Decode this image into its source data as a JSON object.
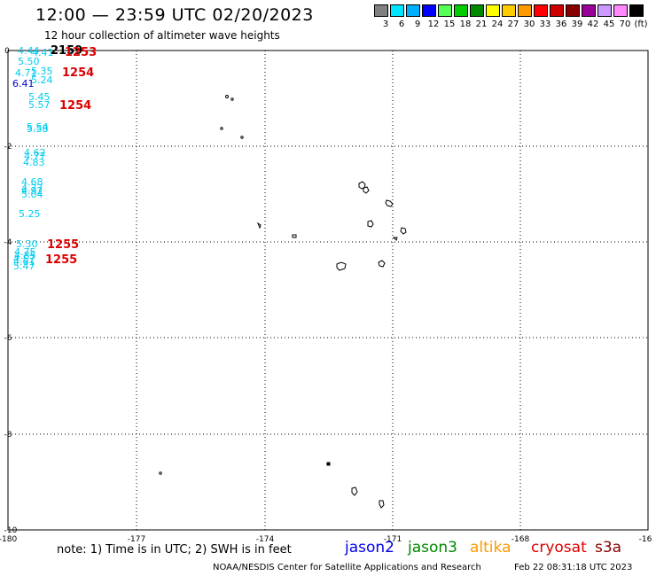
{
  "title": "12:00 — 23:59 UTC 02/20/2023",
  "subtitle": "12 hour collection of altimeter wave heights",
  "scale": {
    "labels": [
      "3",
      "6",
      "9",
      "12",
      "15",
      "18",
      "21",
      "24",
      "27",
      "30",
      "33",
      "36",
      "39",
      "42",
      "45",
      "70",
      "(ft)"
    ],
    "colors": [
      "#808080",
      "#00e5ff",
      "#00b0ff",
      "#0000ff",
      "#55ff55",
      "#00cc00",
      "#008800",
      "#ffff00",
      "#ffcc00",
      "#ff9900",
      "#ff0000",
      "#cc0000",
      "#880000",
      "#990099",
      "#cc99ff",
      "#ff88ff",
      "#000000"
    ]
  },
  "map": {
    "lon_labels": [
      "-180",
      "-177",
      "-174",
      "-171",
      "-168",
      "-16"
    ],
    "lat_labels": [
      "0",
      "-2",
      "-4",
      "-6",
      "-8",
      "-10"
    ]
  },
  "time_labels": [
    {
      "text": "2159",
      "color": "#000000"
    },
    {
      "text": "1253",
      "color": "#dd0000"
    },
    {
      "text": "1254",
      "color": "#dd0000"
    },
    {
      "text": "1254",
      "color": "#dd0000"
    },
    {
      "text": "1255",
      "color": "#dd0000"
    },
    {
      "text": "1255",
      "color": "#dd0000"
    }
  ],
  "swh_labels": [
    "4.44",
    "4.41",
    "5.50",
    "4.71",
    "5.35",
    "5.24",
    "6.41",
    "5.45",
    "5.57",
    "5.54",
    "5.58",
    "4.62",
    "4.77",
    "4.83",
    "4.68",
    "4.77",
    "4.92",
    "5.04",
    "5.25",
    "5.30",
    "4.75",
    "4.85",
    "4.57",
    "4.61",
    "5.47"
  ],
  "note": "note: 1) Time is in UTC; 2) SWH is in feet",
  "satellites": [
    {
      "name": "jason2",
      "color": "#0000ee"
    },
    {
      "name": "jason3",
      "color": "#008800"
    },
    {
      "name": "altika",
      "color": "#ff9900"
    },
    {
      "name": "cryosat",
      "color": "#dd0000"
    },
    {
      "name": "s3a",
      "color": "#880000"
    }
  ],
  "credit": "NOAA/NESDIS Center for Satellite Applications and Research",
  "timestamp": "Feb 22 08:31:18 UTC 2023"
}
